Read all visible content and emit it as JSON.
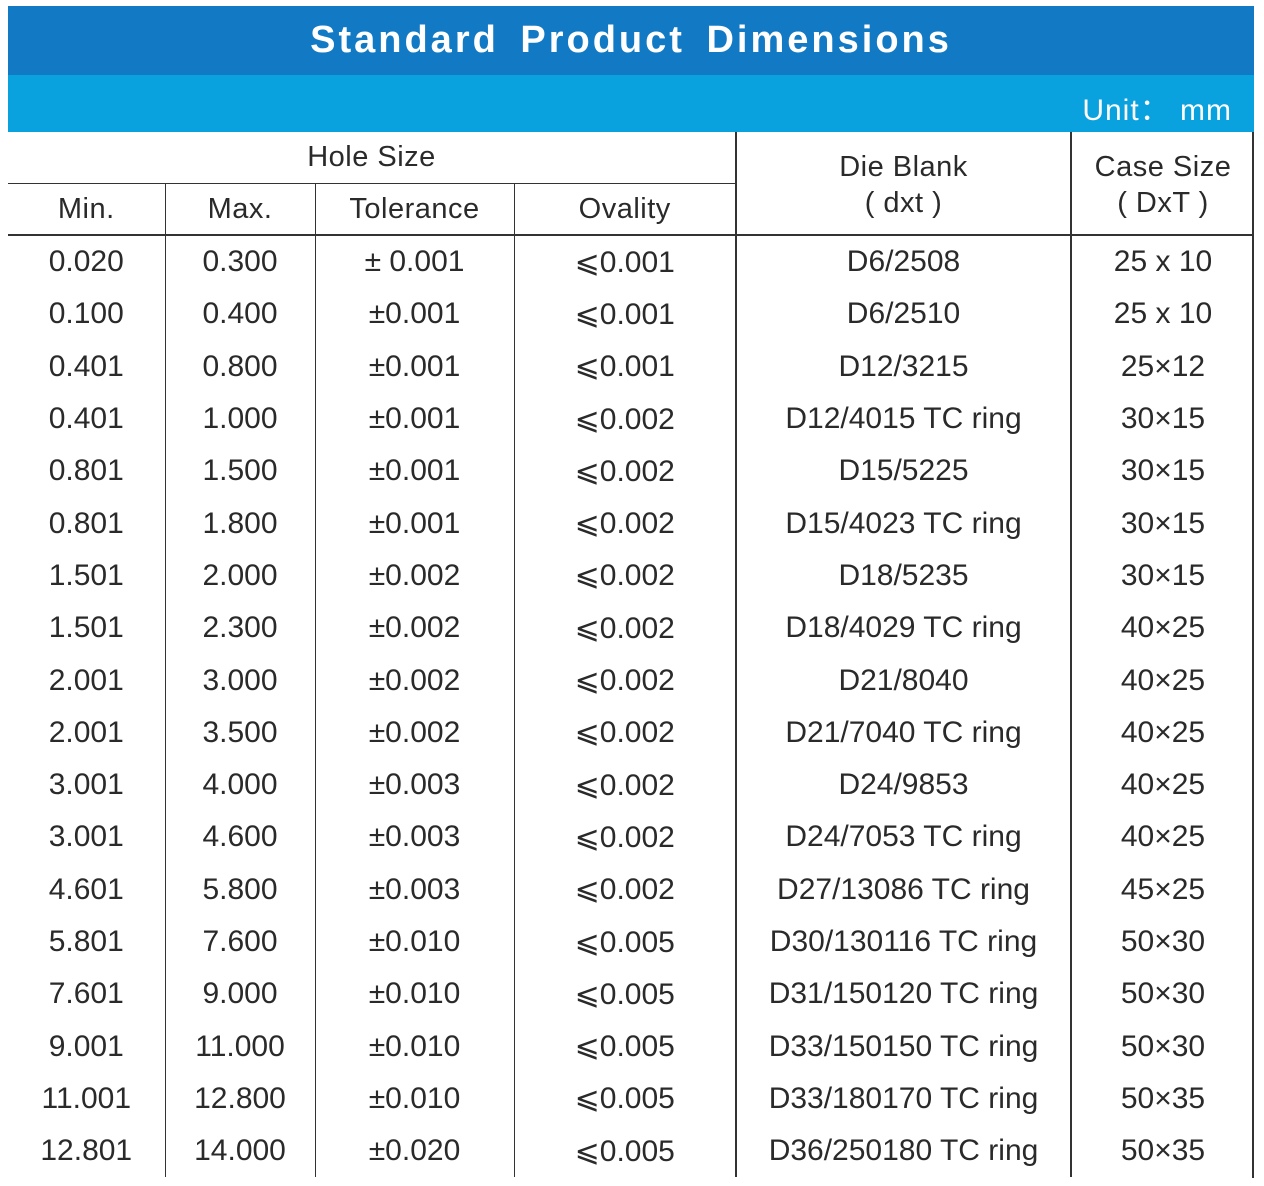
{
  "title": "Standard Product Dimensions",
  "unit": "Unit： mm",
  "headers": {
    "hole_size": "Hole Size",
    "min": "Min.",
    "max": "Max.",
    "tolerance": "Tolerance",
    "ovality": "Ovality",
    "die_blank": "Die Blank",
    "die_blank_sub": "( dxt )",
    "case_size": "Case Size",
    "case_size_sub": "( DxT )"
  },
  "rows": [
    {
      "min": "0.020",
      "max": "0.300",
      "tolerance": "± 0.001",
      "ovality": "⩽0.001",
      "die_blank": "D6/2508",
      "case_size": "25 x 10"
    },
    {
      "min": "0.100",
      "max": "0.400",
      "tolerance": "±0.001",
      "ovality": "⩽0.001",
      "die_blank": "D6/2510",
      "case_size": "25 x 10"
    },
    {
      "min": "0.401",
      "max": "0.800",
      "tolerance": "±0.001",
      "ovality": "⩽0.001",
      "die_blank": "D12/3215",
      "case_size": "25×12"
    },
    {
      "min": "0.401",
      "max": "1.000",
      "tolerance": "±0.001",
      "ovality": "⩽0.002",
      "die_blank": "D12/4015 TC ring",
      "case_size": "30×15"
    },
    {
      "min": "0.801",
      "max": "1.500",
      "tolerance": "±0.001",
      "ovality": "⩽0.002",
      "die_blank": "D15/5225",
      "case_size": "30×15"
    },
    {
      "min": "0.801",
      "max": "1.800",
      "tolerance": "±0.001",
      "ovality": "⩽0.002",
      "die_blank": "D15/4023 TC ring",
      "case_size": "30×15"
    },
    {
      "min": "1.501",
      "max": "2.000",
      "tolerance": "±0.002",
      "ovality": "⩽0.002",
      "die_blank": "D18/5235",
      "case_size": "30×15"
    },
    {
      "min": "1.501",
      "max": "2.300",
      "tolerance": "±0.002",
      "ovality": "⩽0.002",
      "die_blank": "D18/4029 TC ring",
      "case_size": "40×25"
    },
    {
      "min": "2.001",
      "max": "3.000",
      "tolerance": "±0.002",
      "ovality": "⩽0.002",
      "die_blank": "D21/8040",
      "case_size": "40×25"
    },
    {
      "min": "2.001",
      "max": "3.500",
      "tolerance": "±0.002",
      "ovality": "⩽0.002",
      "die_blank": "D21/7040 TC ring",
      "case_size": "40×25"
    },
    {
      "min": "3.001",
      "max": "4.000",
      "tolerance": "±0.003",
      "ovality": "⩽0.002",
      "die_blank": "D24/9853",
      "case_size": "40×25"
    },
    {
      "min": "3.001",
      "max": "4.600",
      "tolerance": "±0.003",
      "ovality": "⩽0.002",
      "die_blank": "D24/7053 TC ring",
      "case_size": "40×25"
    },
    {
      "min": "4.601",
      "max": "5.800",
      "tolerance": "±0.003",
      "ovality": "⩽0.002",
      "die_blank": "D27/13086 TC ring",
      "case_size": "45×25"
    },
    {
      "min": "5.801",
      "max": "7.600",
      "tolerance": "±0.010",
      "ovality": "⩽0.005",
      "die_blank": "D30/130116 TC ring",
      "case_size": "50×30"
    },
    {
      "min": "7.601",
      "max": "9.000",
      "tolerance": "±0.010",
      "ovality": "⩽0.005",
      "die_blank": "D31/150120 TC ring",
      "case_size": "50×30"
    },
    {
      "min": "9.001",
      "max": "11.000",
      "tolerance": "±0.010",
      "ovality": "⩽0.005",
      "die_blank": "D33/150150 TC ring",
      "case_size": "50×30"
    },
    {
      "min": "11.001",
      "max": "12.800",
      "tolerance": "±0.010",
      "ovality": "⩽0.005",
      "die_blank": "D33/180170 TC ring",
      "case_size": "50×35"
    },
    {
      "min": "12.801",
      "max": "14.000",
      "tolerance": "±0.020",
      "ovality": "⩽0.005",
      "die_blank": "D36/250180 TC ring",
      "case_size": "50×35"
    }
  ]
}
